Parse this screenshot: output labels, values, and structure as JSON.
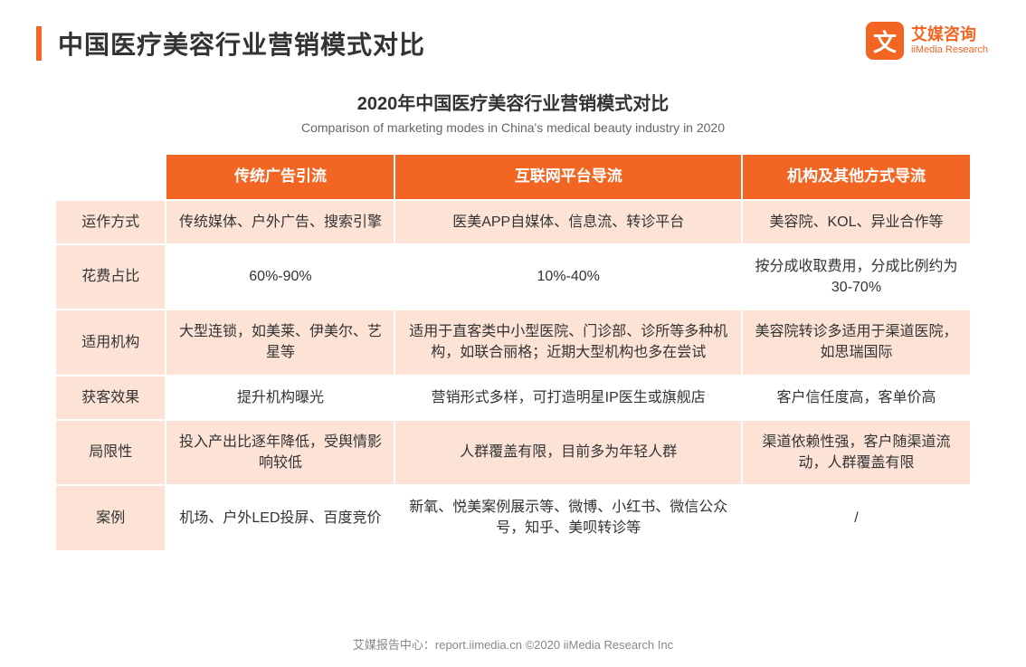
{
  "header": {
    "title": "中国医疗美容行业营销模式对比"
  },
  "logo": {
    "glyph": "文",
    "name_cn": "艾媒咨询",
    "name_en": "iiMedia Research"
  },
  "subtitle": {
    "cn": "2020年中国医疗美容行业营销模式对比",
    "en": "Comparison of marketing modes in China's medical beauty industry in 2020"
  },
  "table": {
    "columns": [
      "传统广告引流",
      "互联网平台导流",
      "机构及其他方式导流"
    ],
    "rows": [
      {
        "label": "运作方式",
        "cells": [
          "传统媒体、户外广告、搜索引擎",
          "医美APP自媒体、信息流、转诊平台",
          "美容院、KOL、异业合作等"
        ]
      },
      {
        "label": "花费占比",
        "cells": [
          "60%-90%",
          "10%-40%",
          "按分成收取费用，分成比例约为30-70%"
        ]
      },
      {
        "label": "适用机构",
        "cells": [
          "大型连锁，如美莱、伊美尔、艺星等",
          "适用于直客类中小型医院、门诊部、诊所等多种机构，如联合丽格；近期大型机构也多在尝试",
          "美容院转诊多适用于渠道医院，如思瑞国际"
        ]
      },
      {
        "label": "获客效果",
        "cells": [
          "提升机构曝光",
          "营销形式多样，可打造明星IP医生或旗舰店",
          "客户信任度高，客单价高"
        ]
      },
      {
        "label": "局限性",
        "cells": [
          "投入产出比逐年降低，受舆情影响较低",
          "人群覆盖有限，目前多为年轻人群",
          "渠道依赖性强，客户随渠道流动，人群覆盖有限"
        ]
      },
      {
        "label": "案例",
        "cells": [
          "机场、户外LED投屏、百度竞价",
          "新氧、悦美案例展示等、微博、小红书、微信公众号，知乎、美呗转诊等",
          "/"
        ]
      }
    ]
  },
  "footer": {
    "text": "艾媒报告中心：report.iimedia.cn   ©2020  iiMedia Research  Inc"
  },
  "style": {
    "accent_color": "#f26522",
    "row_band_color": "#fde3d6",
    "text_color": "#333333",
    "subtext_color": "#666666",
    "footer_color": "#888888",
    "background": "#ffffff",
    "title_fontsize": 28,
    "subtitle_cn_fontsize": 20,
    "subtitle_en_fontsize": 14,
    "cell_fontsize": 16,
    "header_fontsize": 17
  }
}
